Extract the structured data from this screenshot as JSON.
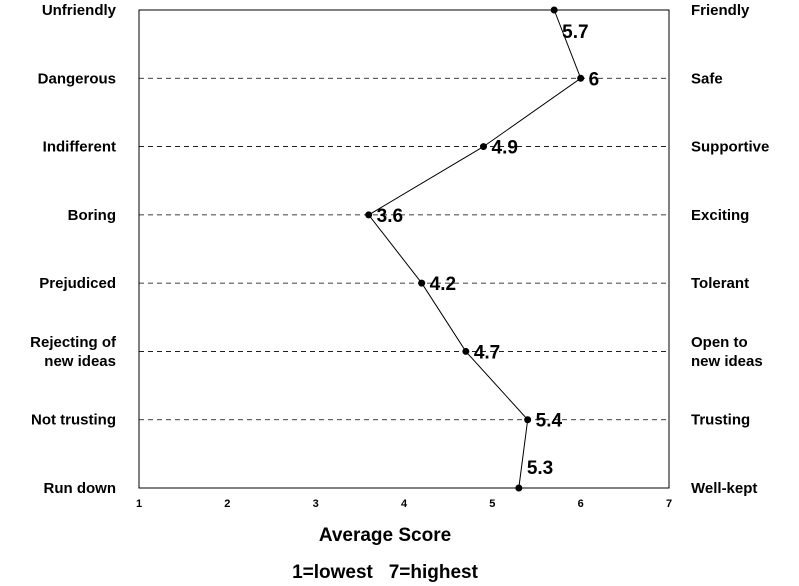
{
  "chart_data": {
    "type": "line",
    "orientation": "horizontal-profile",
    "left_labels": [
      [
        "Unfriendly"
      ],
      [
        "Dangerous"
      ],
      [
        "Indifferent"
      ],
      [
        "Boring"
      ],
      [
        "Prejudiced"
      ],
      [
        "Rejecting of",
        "new ideas"
      ],
      [
        "Not trusting"
      ],
      [
        "Run down"
      ]
    ],
    "right_labels": [
      [
        "Friendly"
      ],
      [
        "Safe"
      ],
      [
        "Supportive"
      ],
      [
        "Exciting"
      ],
      [
        "Tolerant"
      ],
      [
        "Open to",
        "new ideas"
      ],
      [
        "Trusting"
      ],
      [
        "Well-kept"
      ]
    ],
    "values": [
      5.7,
      6,
      4.9,
      3.6,
      4.2,
      4.7,
      5.4,
      5.3
    ],
    "value_labels": [
      "5.7",
      "6",
      "4.9",
      "3.6",
      "4.2",
      "4.7",
      "5.4",
      "5.3"
    ],
    "x_ticks": [
      "1",
      "2",
      "3",
      "4",
      "5",
      "6",
      "7"
    ],
    "xlim": [
      1,
      7
    ],
    "xlabel": "Average Score",
    "scale_note": "1=lowest   7=highest",
    "grid": "dashed horizontal",
    "line_color": "#000000"
  }
}
